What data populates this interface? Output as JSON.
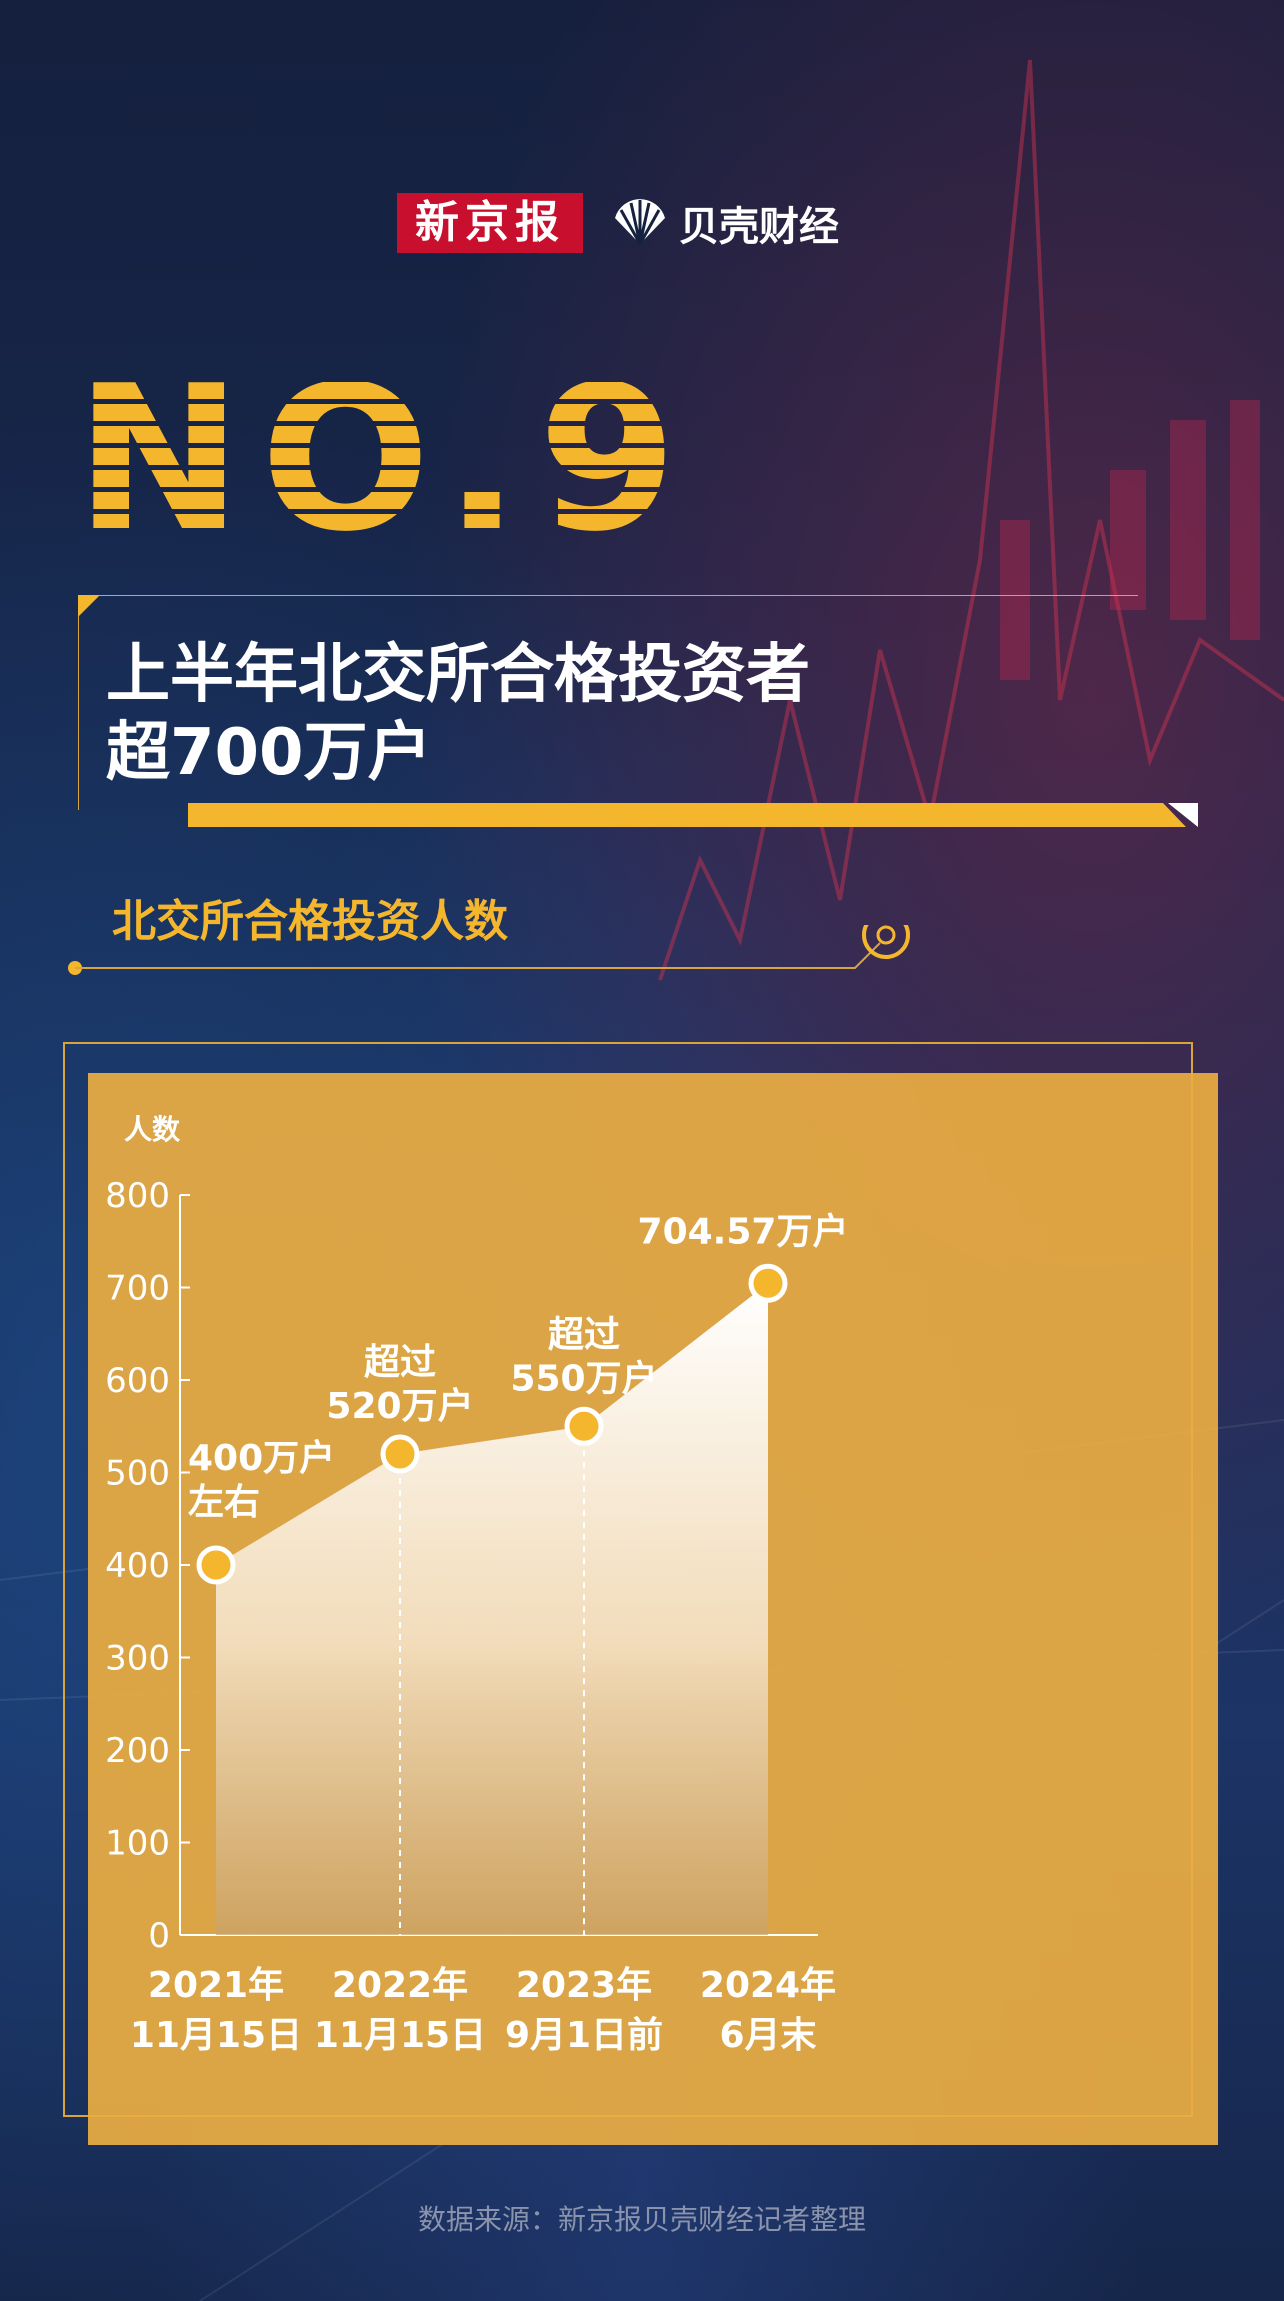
{
  "header": {
    "logo_left": "新京报",
    "logo_right": "贝壳财经"
  },
  "badge": "NO.9",
  "title": {
    "line1": "上半年北交所合格投资者",
    "line2": "超700万户"
  },
  "subtitle": "北交所合格投资人数",
  "source": "数据来源：新京报贝壳财经记者整理",
  "colors": {
    "accent": "#f4b62c",
    "panel": "#ecae42",
    "brand_red": "#c8102e",
    "background": "#15203e"
  },
  "chart_data": {
    "type": "area",
    "title": "北交所合格投资人数",
    "ylabel": "人数",
    "ylim": [
      0,
      800
    ],
    "yticks": [
      0,
      100,
      200,
      300,
      400,
      500,
      600,
      700,
      800
    ],
    "categories": [
      [
        "2021年",
        "11月15日"
      ],
      [
        "2022年",
        "11月15日"
      ],
      [
        "2023年",
        "9月1日前"
      ],
      [
        "2024年",
        "6月末"
      ]
    ],
    "values": [
      400,
      520,
      550,
      704.57
    ],
    "data_labels": [
      [
        "400万户",
        "左右"
      ],
      [
        "超过",
        "520万户"
      ],
      [
        "超过",
        "550万户"
      ],
      [
        "704.57万户"
      ]
    ],
    "grid": false,
    "legend": "none"
  }
}
